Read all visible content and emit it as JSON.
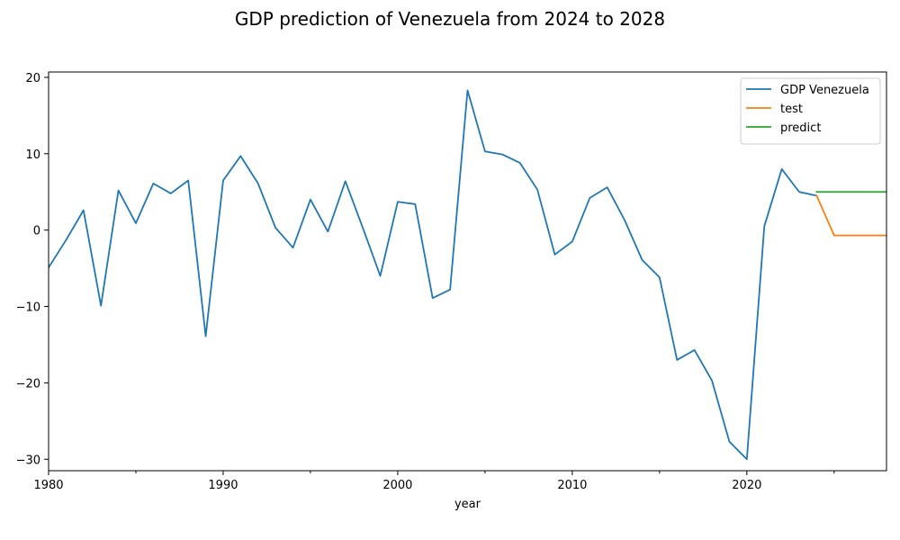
{
  "chart_data": {
    "type": "line",
    "title": "GDP prediction of Venezuela from 2024 to 2028",
    "xlabel": "year",
    "ylabel": "",
    "xlim": [
      1980,
      2028
    ],
    "ylim": [
      -31.5,
      20.7
    ],
    "x_ticks": [
      1980,
      1990,
      2000,
      2010,
      2020
    ],
    "x_minor_ticks": [
      1985,
      1995,
      2005,
      2015,
      2025
    ],
    "y_ticks": [
      20,
      10,
      0,
      -10,
      -20,
      -30
    ],
    "y_tick_labels": [
      "20",
      "10",
      "0",
      "−10",
      "−20",
      "−30"
    ],
    "grid": false,
    "legend_position": "top-right",
    "series": [
      {
        "name": "GDP Venezuela",
        "color": "#1f77b4",
        "x": [
          1980,
          1981,
          1982,
          1983,
          1984,
          1985,
          1986,
          1987,
          1988,
          1989,
          1990,
          1991,
          1992,
          1993,
          1994,
          1995,
          1996,
          1997,
          1998,
          1999,
          2000,
          2001,
          2002,
          2003,
          2004,
          2005,
          2006,
          2007,
          2008,
          2009,
          2010,
          2011,
          2012,
          2013,
          2014,
          2015,
          2016,
          2017,
          2018,
          2019,
          2020,
          2021,
          2022,
          2023,
          2024
        ],
        "values": [
          -4.9,
          -1.3,
          2.6,
          -9.9,
          5.2,
          0.9,
          6.1,
          4.8,
          6.5,
          -13.9,
          6.5,
          9.7,
          6.1,
          0.3,
          -2.3,
          4.0,
          -0.2,
          6.4,
          0.3,
          -6.0,
          3.7,
          3.4,
          -8.9,
          -7.8,
          18.3,
          10.3,
          9.9,
          8.8,
          5.3,
          -3.2,
          -1.5,
          4.2,
          5.6,
          1.3,
          -3.9,
          -6.2,
          -17.0,
          -15.7,
          -19.7,
          -27.7,
          -30.0,
          0.5,
          8.0,
          5.0,
          4.5
        ]
      },
      {
        "name": "test",
        "color": "#ff7f0e",
        "x": [
          2024,
          2025,
          2026,
          2027,
          2028
        ],
        "values": [
          4.5,
          -0.7,
          -0.7,
          -0.7,
          -0.7
        ]
      },
      {
        "name": "predict",
        "color": "#2ca02c",
        "x": [
          2024,
          2025,
          2026,
          2027,
          2028
        ],
        "values": [
          5.0,
          5.0,
          5.0,
          5.0,
          5.0
        ]
      }
    ]
  }
}
